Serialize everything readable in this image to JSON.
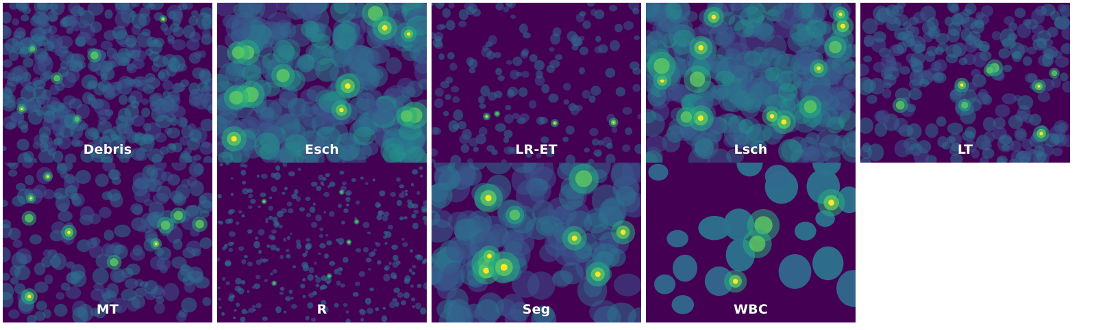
{
  "colormap": {
    "background": "#440154",
    "low": "#3b528b",
    "mid": "#2c728e",
    "teal": "#21918c",
    "green": "#27ad81",
    "lime": "#5ec962",
    "high": "#fde725"
  },
  "panels": [
    {
      "label": "Debris",
      "density": "high",
      "blob_size": "small",
      "intensity": "medium"
    },
    {
      "label": "Esch",
      "density": "very-high",
      "blob_size": "medium",
      "intensity": "high"
    },
    {
      "label": "LR-ET",
      "density": "low",
      "blob_size": "small",
      "intensity": "low"
    },
    {
      "label": "Lsch",
      "density": "very-high",
      "blob_size": "medium",
      "intensity": "high"
    },
    {
      "label": "LT",
      "density": "high",
      "blob_size": "small",
      "intensity": "medium"
    },
    {
      "label": "MT",
      "density": "medium",
      "blob_size": "small",
      "intensity": "medium"
    },
    {
      "label": "R",
      "density": "medium",
      "blob_size": "tiny",
      "intensity": "low"
    },
    {
      "label": "Seg",
      "density": "high",
      "blob_size": "large",
      "intensity": "medium"
    },
    {
      "label": "WBC",
      "density": "low",
      "blob_size": "large",
      "intensity": "high"
    },
    {
      "label": "",
      "density": "none",
      "blob_size": "none",
      "intensity": "none"
    }
  ]
}
